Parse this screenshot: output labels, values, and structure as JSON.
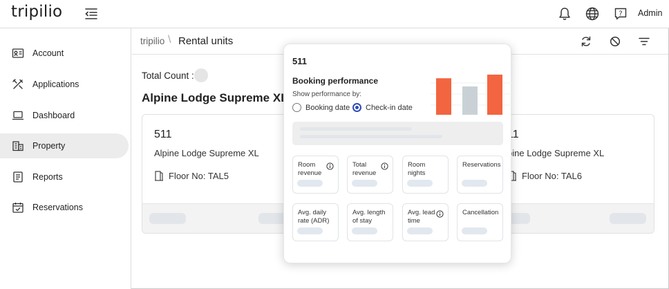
{
  "header": {
    "logo": "tripilio",
    "user": "Admin",
    "icons": [
      "menu-collapse-icon",
      "bell-icon",
      "globe-icon",
      "help-icon"
    ]
  },
  "sidebar": {
    "items": [
      {
        "label": "Account",
        "icon": "id-card-icon"
      },
      {
        "label": "Applications",
        "icon": "tools-icon"
      },
      {
        "label": "Dashboard",
        "icon": "laptop-icon"
      },
      {
        "label": "Property",
        "icon": "building-icon",
        "active": true
      },
      {
        "label": "Reports",
        "icon": "report-icon"
      },
      {
        "label": "Reservations",
        "icon": "calendar-check-icon"
      }
    ]
  },
  "breadcrumb": {
    "root": "tripilio",
    "separator": "\\",
    "current": "Rental units"
  },
  "toolbar": {
    "icons": [
      "refresh-icon",
      "block-icon",
      "filter-icon"
    ]
  },
  "total_label": "Total Count :",
  "property_title": "Alpine Lodge Supreme XL",
  "cards": [
    {
      "number": "511",
      "name": "Alpine Lodge Supreme XL",
      "floor": "Floor No: TAL5"
    },
    {
      "number": "11",
      "name": "pine Lodge Supreme XL",
      "floor": "Floor No: TAL6"
    }
  ],
  "popover": {
    "unit": "511",
    "heading": "Booking performance",
    "subheading": "Show performance by:",
    "options": [
      {
        "label": "Booking date",
        "selected": false
      },
      {
        "label": "Check-in date",
        "selected": true
      }
    ],
    "metrics": [
      {
        "label": "Room\nrevenue",
        "info": true
      },
      {
        "label": "Total\nrevenue",
        "info": true
      },
      {
        "label": "Room\nnights",
        "info": false
      },
      {
        "label": "Reservations",
        "info": false
      },
      {
        "label": "Avg. daily\nrate (ADR)",
        "info": false
      },
      {
        "label": "Avg. length\nof stay",
        "info": false
      },
      {
        "label": "Avg. lead\ntime",
        "info": true
      },
      {
        "label": "Cancellation",
        "info": false
      }
    ]
  },
  "chart_data": {
    "type": "bar",
    "categories": [
      "",
      "",
      ""
    ],
    "values": [
      0.8,
      0.62,
      0.88
    ],
    "colors": [
      "#f26540",
      "#c9d1d6",
      "#f26540"
    ]
  }
}
